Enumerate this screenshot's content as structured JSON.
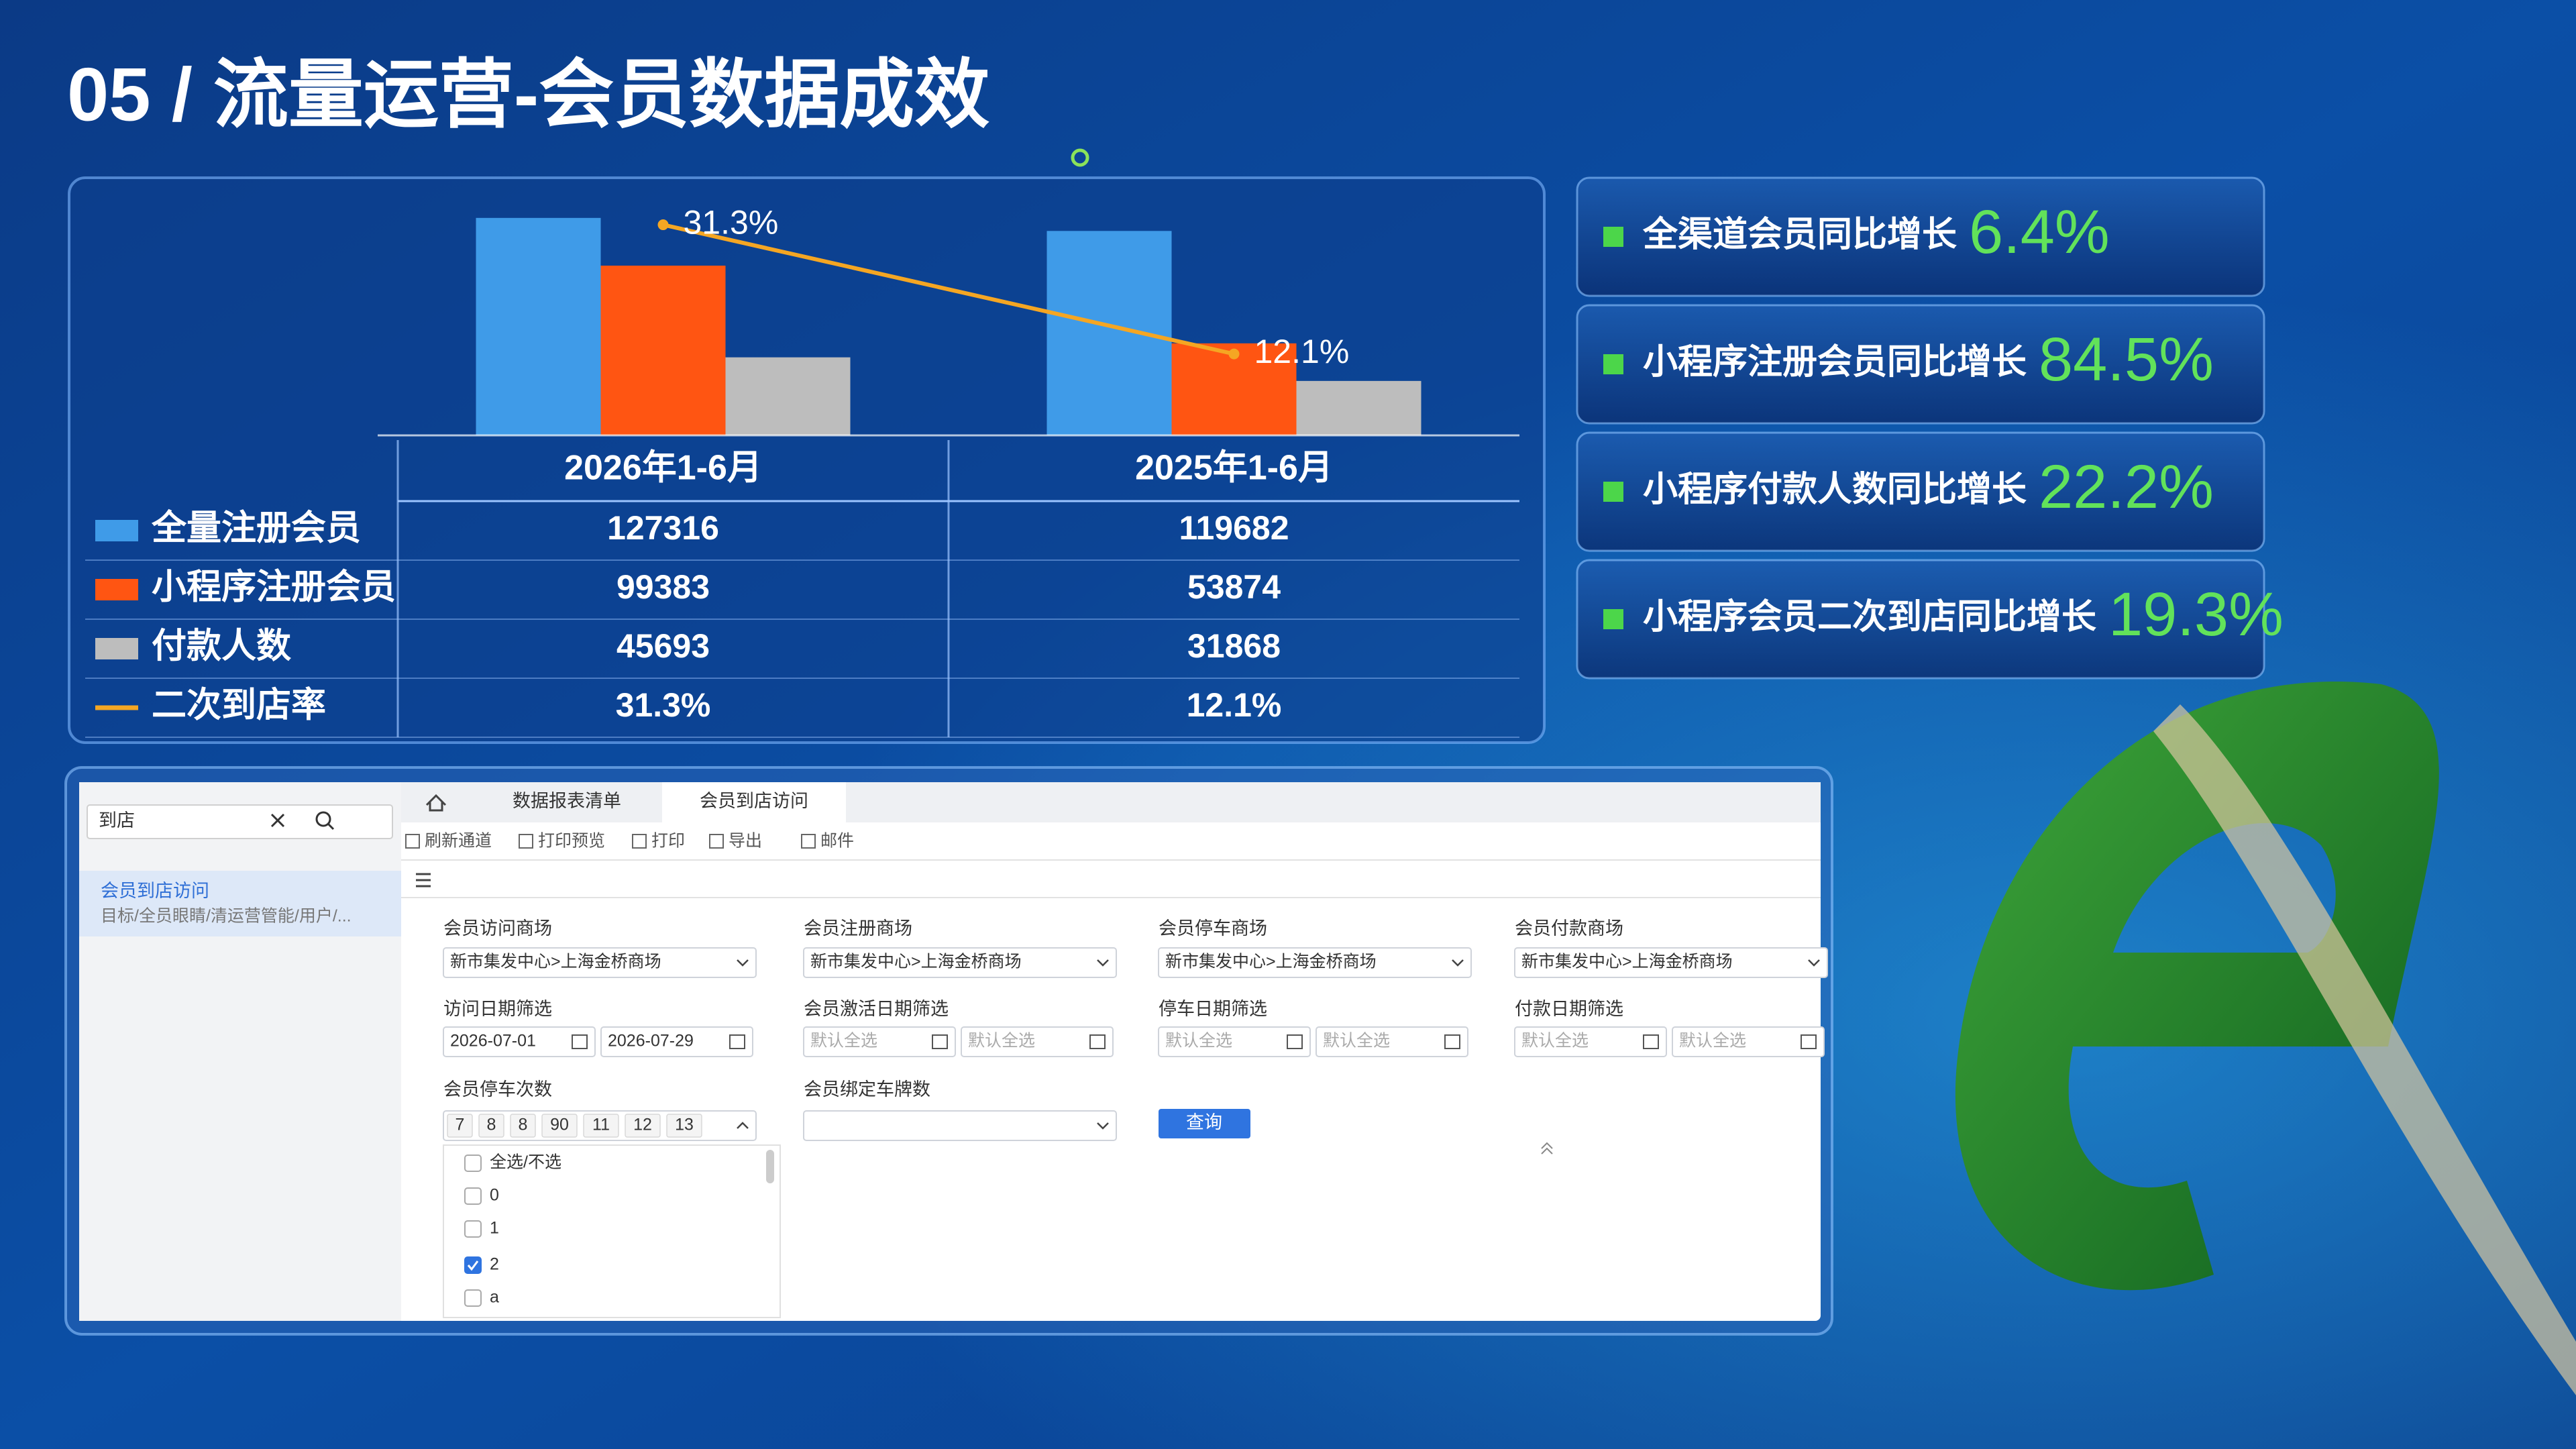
{
  "title": "05 / 流量运营-会员数据成效",
  "chart_data": {
    "type": "bar",
    "categories": [
      "2026年1-6月",
      "2025年1-6月"
    ],
    "series": [
      {
        "name": "全量注册会员",
        "color": "#3f9be8",
        "values": [
          127316,
          119682
        ]
      },
      {
        "name": "小程序注册会员",
        "color": "#ff5512",
        "values": [
          99383,
          53874
        ]
      },
      {
        "name": "付款人数",
        "color": "#bdbdbd",
        "values": [
          45693,
          31868
        ]
      },
      {
        "name": "二次到店率",
        "type": "line",
        "axis": "y2",
        "color": "#f5a623",
        "values": [
          31.3,
          12.1
        ],
        "value_labels": [
          "31.3%",
          "12.1%"
        ]
      }
    ],
    "ylim": [
      0,
      130000
    ],
    "y2lim": [
      0,
      33
    ]
  },
  "kpis": [
    {
      "label": "全渠道会员同比增长",
      "value": "6.4%"
    },
    {
      "label": "小程序注册会员同比增长",
      "value": "84.5%"
    },
    {
      "label": "小程序付款人数同比增长",
      "value": "22.2%"
    },
    {
      "label": "小程序会员二次到店同比增长",
      "value": "19.3%"
    }
  ],
  "screenshot": {
    "search": "到店",
    "menu_item": "会员到店访问",
    "menu_path": "目标/全员眼睛/清运营管能/用户/...",
    "tabs": [
      "数据报表清单",
      "会员到店访问"
    ],
    "toolbar": [
      "刷新通道",
      "打印预览",
      "打印",
      "导出",
      "邮件"
    ],
    "fields": [
      {
        "label": "会员访问商场",
        "select": "新市集发中心>上海金桥商场"
      },
      {
        "label": "会员注册商场",
        "select": "新市集发中心>上海金桥商场"
      },
      {
        "label": "会员停车商场",
        "select": "新市集发中心>上海金桥商场"
      },
      {
        "label": "会员付款商场",
        "select": "新市集发中心>上海金桥商场"
      },
      {
        "label": "访问日期筛选",
        "range": [
          "2026-07-01",
          "2026-07-29"
        ]
      },
      {
        "label": "会员激活日期筛选",
        "range": [
          "默认全选",
          "默认全选"
        ]
      },
      {
        "label": "停车日期筛选",
        "range": [
          "默认全选",
          "默认全选"
        ]
      },
      {
        "label": "付款日期筛选",
        "range": [
          "默认全选",
          "默认全选"
        ]
      },
      {
        "label": "会员停车次数",
        "chips": [
          "7",
          "8",
          "8",
          "90",
          "11",
          "12",
          "13"
        ]
      },
      {
        "label": "会员绑定车牌数"
      }
    ],
    "button": "查询",
    "options": [
      {
        "label": "全选/不选"
      },
      {
        "label": "0"
      },
      {
        "label": "1"
      },
      {
        "label": "2",
        "checked": true
      },
      {
        "label": "a"
      }
    ]
  }
}
